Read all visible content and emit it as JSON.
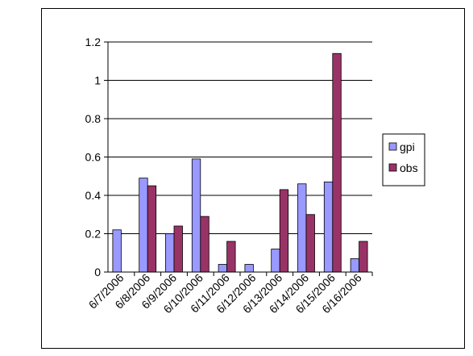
{
  "chart_data": {
    "type": "bar",
    "title": "",
    "xlabel": "",
    "ylabel": "",
    "categories": [
      "6/7/2006",
      "6/8/2006",
      "6/9/2006",
      "6/10/2006",
      "6/11/2006",
      "6/12/2006",
      "6/13/2006",
      "6/14/2006",
      "6/15/2006",
      "6/16/2006"
    ],
    "series": [
      {
        "name": "gpi",
        "color": "#9999FF",
        "values": [
          0.22,
          0.49,
          0.2,
          0.59,
          0.04,
          0.04,
          0.12,
          0.46,
          0.47,
          0.07
        ]
      },
      {
        "name": "obs",
        "color": "#993366",
        "values": [
          null,
          0.45,
          0.24,
          0.29,
          0.16,
          null,
          0.43,
          0.3,
          1.14,
          0.16
        ]
      }
    ],
    "ylim": [
      0,
      1.2
    ],
    "yticks": [
      "0",
      "0.2",
      "0.4",
      "0.6",
      "0.8",
      "1",
      "1.2"
    ],
    "grid": true,
    "legend_position": "right"
  }
}
